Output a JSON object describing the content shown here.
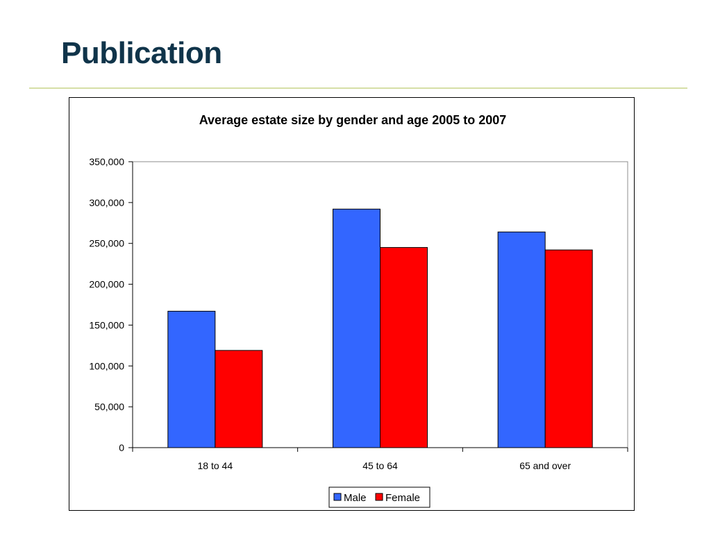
{
  "slide": {
    "title": "Publication"
  },
  "chart_data": {
    "type": "bar",
    "title": "Average estate size by gender and age 2005 to 2007",
    "xlabel": "",
    "ylabel": "",
    "categories": [
      "18 to 44",
      "45 to 64",
      "65 and over"
    ],
    "series": [
      {
        "name": "Male",
        "color": "#3366ff",
        "values": [
          167000,
          292000,
          264000
        ]
      },
      {
        "name": "Female",
        "color": "#ff0000",
        "values": [
          119000,
          245000,
          242000
        ]
      }
    ],
    "ylim": [
      0,
      350000
    ],
    "yticks": [
      0,
      50000,
      100000,
      150000,
      200000,
      250000,
      300000,
      350000
    ],
    "ytick_labels": [
      "0",
      "50,000",
      "100,000",
      "150,000",
      "200,000",
      "250,000",
      "300,000",
      "350,000"
    ],
    "grid": false,
    "legend_position": "bottom"
  }
}
